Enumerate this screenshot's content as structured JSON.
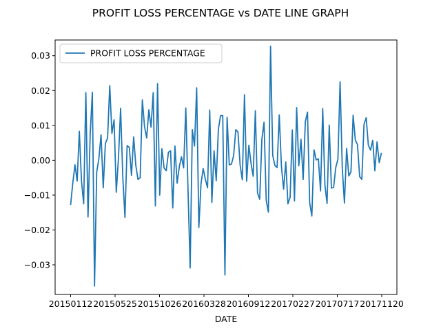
{
  "chart_data": {
    "type": "line",
    "title": "PROFIT LOSS PERCENTAGE vs DATE LINE GRAPH",
    "xlabel": "DATE",
    "ylabel": "",
    "x_tick_labels": [
      "20150112",
      "20150525",
      "20151026",
      "20160328",
      "20160912",
      "20170227",
      "20170717",
      "20171120"
    ],
    "y_ticks": [
      -0.03,
      -0.02,
      -0.01,
      0.0,
      0.01,
      0.02,
      0.03
    ],
    "y_tick_labels": [
      "−0.03",
      "−0.02",
      "−0.01",
      "0.00",
      "0.01",
      "0.02",
      "0.03"
    ],
    "ylim": [
      -0.0385,
      0.0345
    ],
    "legend": {
      "position": "top-left",
      "entries": [
        "PROFIT LOSS PERCENTAGE"
      ]
    },
    "grid": false,
    "series": [
      {
        "name": "PROFIT LOSS PERCENTAGE",
        "color": "#1f77b4",
        "values": [
          -0.0128,
          -0.0065,
          -0.0013,
          -0.006,
          0.0083,
          -0.006,
          -0.0125,
          0.0194,
          -0.0163,
          0.0074,
          0.0195,
          -0.0361,
          -0.0034,
          0.0005,
          0.0073,
          -0.0079,
          0.0049,
          0.0063,
          0.0214,
          0.0077,
          0.0116,
          -0.0092,
          0.0004,
          0.0149,
          -0.0047,
          -0.0164,
          0.0042,
          0.0037,
          -0.0043,
          0.0067,
          -0.0015,
          -0.0055,
          -0.005,
          0.0173,
          0.0097,
          0.0064,
          0.0145,
          0.0095,
          0.0194,
          -0.0131,
          0.022,
          -0.01,
          0.0033,
          -0.0022,
          -0.003,
          0.0023,
          0.0027,
          -0.0137,
          0.0041,
          -0.0066,
          -0.0019,
          0.001,
          -0.0022,
          0.015,
          -0.0082,
          -0.0309,
          0.0088,
          0.0041,
          0.0208,
          -0.0193,
          -0.0067,
          -0.0024,
          -0.0055,
          -0.0079,
          0.0144,
          -0.0121,
          0.0027,
          -0.0059,
          0.009,
          0.0128,
          0.0128,
          -0.0329,
          0.0123,
          -0.0013,
          -0.0011,
          0.0013,
          0.0088,
          0.0081,
          -0.0014,
          -0.0056,
          0.0188,
          -0.006,
          0.0043,
          -0.0008,
          -0.0046,
          0.0142,
          -0.0094,
          -0.0112,
          0.006,
          0.0109,
          -0.0115,
          -0.0149,
          0.0327,
          0.0014,
          -0.0015,
          -0.0021,
          0.013,
          -0.0017,
          -0.0083,
          -0.0005,
          -0.0125,
          -0.0106,
          0.0087,
          -0.0117,
          0.0151,
          -0.0016,
          0.006,
          -0.0055,
          0.0111,
          0.0138,
          -0.0122,
          -0.016,
          0.003,
          0.0001,
          0.0004,
          -0.0088,
          0.0148,
          -0.0071,
          -0.0124,
          0.0101,
          -0.008,
          -0.0078,
          -0.0021,
          0.0003,
          0.0225,
          -0.0023,
          -0.0123,
          0.0034,
          -0.0045,
          -0.0033,
          0.0129,
          0.0058,
          0.0045,
          -0.0047,
          -0.0055,
          0.0103,
          0.0122,
          0.0043,
          0.0029,
          0.0057,
          -0.003,
          0.0053,
          -0.0007,
          0.0021
        ]
      }
    ]
  }
}
